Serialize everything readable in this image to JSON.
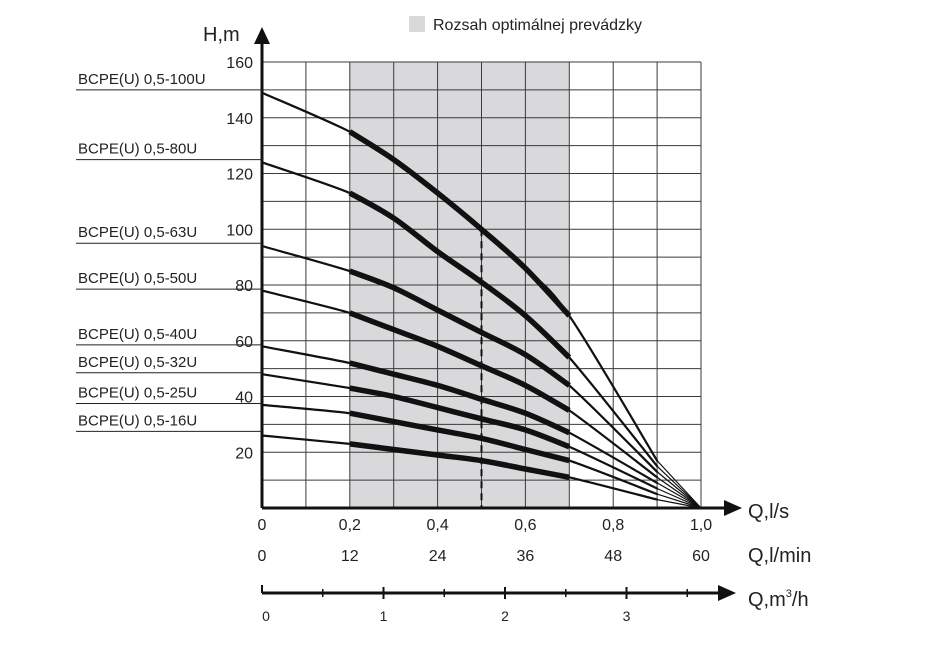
{
  "chart_data": {
    "type": "line",
    "title": "",
    "legend": {
      "label": "Rozsah optimálnej prevádzky",
      "placement": "top-right",
      "color": "#d9d9db"
    },
    "ylabel": "H,m",
    "xlabel": "Q,l/s",
    "xlabel_lmin": "Q,l/min",
    "xlabel_m3h_prefix": "Q,m",
    "xlabel_m3h_sup": "3",
    "xlabel_m3h_suffix": "/h",
    "xlim": [
      0,
      1.0
    ],
    "ylim": [
      0,
      160
    ],
    "grid": true,
    "y_ticks": [
      {
        "value": 20,
        "label": "20"
      },
      {
        "value": 40,
        "label": "40"
      },
      {
        "value": 60,
        "label": "60"
      },
      {
        "value": 80,
        "label": "80"
      },
      {
        "value": 100,
        "label": "100"
      },
      {
        "value": 120,
        "label": "120"
      },
      {
        "value": 140,
        "label": "140"
      },
      {
        "value": 160,
        "label": "160"
      }
    ],
    "x_ticks_ls": [
      {
        "value": 0,
        "label": "0"
      },
      {
        "value": 0.2,
        "label": "0,2"
      },
      {
        "value": 0.4,
        "label": "0,4"
      },
      {
        "value": 0.6,
        "label": "0,6"
      },
      {
        "value": 0.8,
        "label": "0,8"
      },
      {
        "value": 1.0,
        "label": "1,0"
      }
    ],
    "x_ticks_lmin": [
      {
        "value": 0,
        "label": "0"
      },
      {
        "value": 0.2,
        "label": "12"
      },
      {
        "value": 0.4,
        "label": "24"
      },
      {
        "value": 0.6,
        "label": "36"
      },
      {
        "value": 0.8,
        "label": "48"
      },
      {
        "value": 1.0,
        "label": "60"
      }
    ],
    "x_ticks_m3h": [
      {
        "value": 0,
        "label": "0"
      },
      {
        "value": 1,
        "label": "1"
      },
      {
        "value": 2,
        "label": "2"
      },
      {
        "value": 3,
        "label": "3"
      }
    ],
    "m3h_minor_ticks": [
      0.5,
      1.5,
      2.5,
      3.5
    ],
    "optimal_range": [
      0.2,
      0.7
    ],
    "nominal_flow": 0.5,
    "series": [
      {
        "name": "BCPE(U) 0,5-100U",
        "x": [
          0,
          0.2,
          0.3,
          0.4,
          0.5,
          0.6,
          0.7,
          0.9
        ],
        "y": [
          149,
          135,
          125,
          113,
          100,
          86,
          69,
          17
        ]
      },
      {
        "name": "BCPE(U) 0,5-80U",
        "x": [
          0,
          0.2,
          0.3,
          0.4,
          0.5,
          0.6,
          0.7,
          0.9
        ],
        "y": [
          124,
          113,
          104,
          92,
          81,
          69,
          54,
          15
        ]
      },
      {
        "name": "BCPE(U) 0,5-63U",
        "x": [
          0,
          0.2,
          0.3,
          0.4,
          0.5,
          0.6,
          0.7,
          0.9
        ],
        "y": [
          94,
          85,
          79,
          71,
          63,
          55,
          44,
          13
        ]
      },
      {
        "name": "BCPE(U) 0,5-50U",
        "x": [
          0,
          0.2,
          0.3,
          0.4,
          0.5,
          0.6,
          0.7,
          0.9
        ],
        "y": [
          78,
          70,
          64,
          58,
          51,
          44,
          35,
          11
        ]
      },
      {
        "name": "BCPE(U) 0,5-40U",
        "x": [
          0,
          0.2,
          0.3,
          0.4,
          0.5,
          0.6,
          0.7,
          0.9
        ],
        "y": [
          58,
          52,
          48,
          44,
          39,
          34,
          27,
          9
        ]
      },
      {
        "name": "BCPE(U) 0,5-32U",
        "x": [
          0,
          0.2,
          0.3,
          0.4,
          0.5,
          0.6,
          0.7,
          0.9
        ],
        "y": [
          48,
          43,
          40,
          36,
          32,
          28,
          22,
          7
        ]
      },
      {
        "name": "BCPE(U) 0,5-25U",
        "x": [
          0,
          0.2,
          0.3,
          0.4,
          0.5,
          0.6,
          0.7,
          0.9
        ],
        "y": [
          37,
          34,
          31,
          28,
          25,
          21,
          17,
          5
        ]
      },
      {
        "name": "BCPE(U) 0,5-16U",
        "x": [
          0,
          0.2,
          0.3,
          0.4,
          0.5,
          0.6,
          0.7,
          0.9
        ],
        "y": [
          26,
          23,
          21,
          19,
          17,
          14,
          11,
          3
        ]
      }
    ],
    "series_label_anchor_y": [
      150,
      125,
      95,
      78.5,
      58.5,
      48.5,
      37.5,
      27.5
    ],
    "converge_point": {
      "x": 1.0,
      "y": 0
    }
  }
}
